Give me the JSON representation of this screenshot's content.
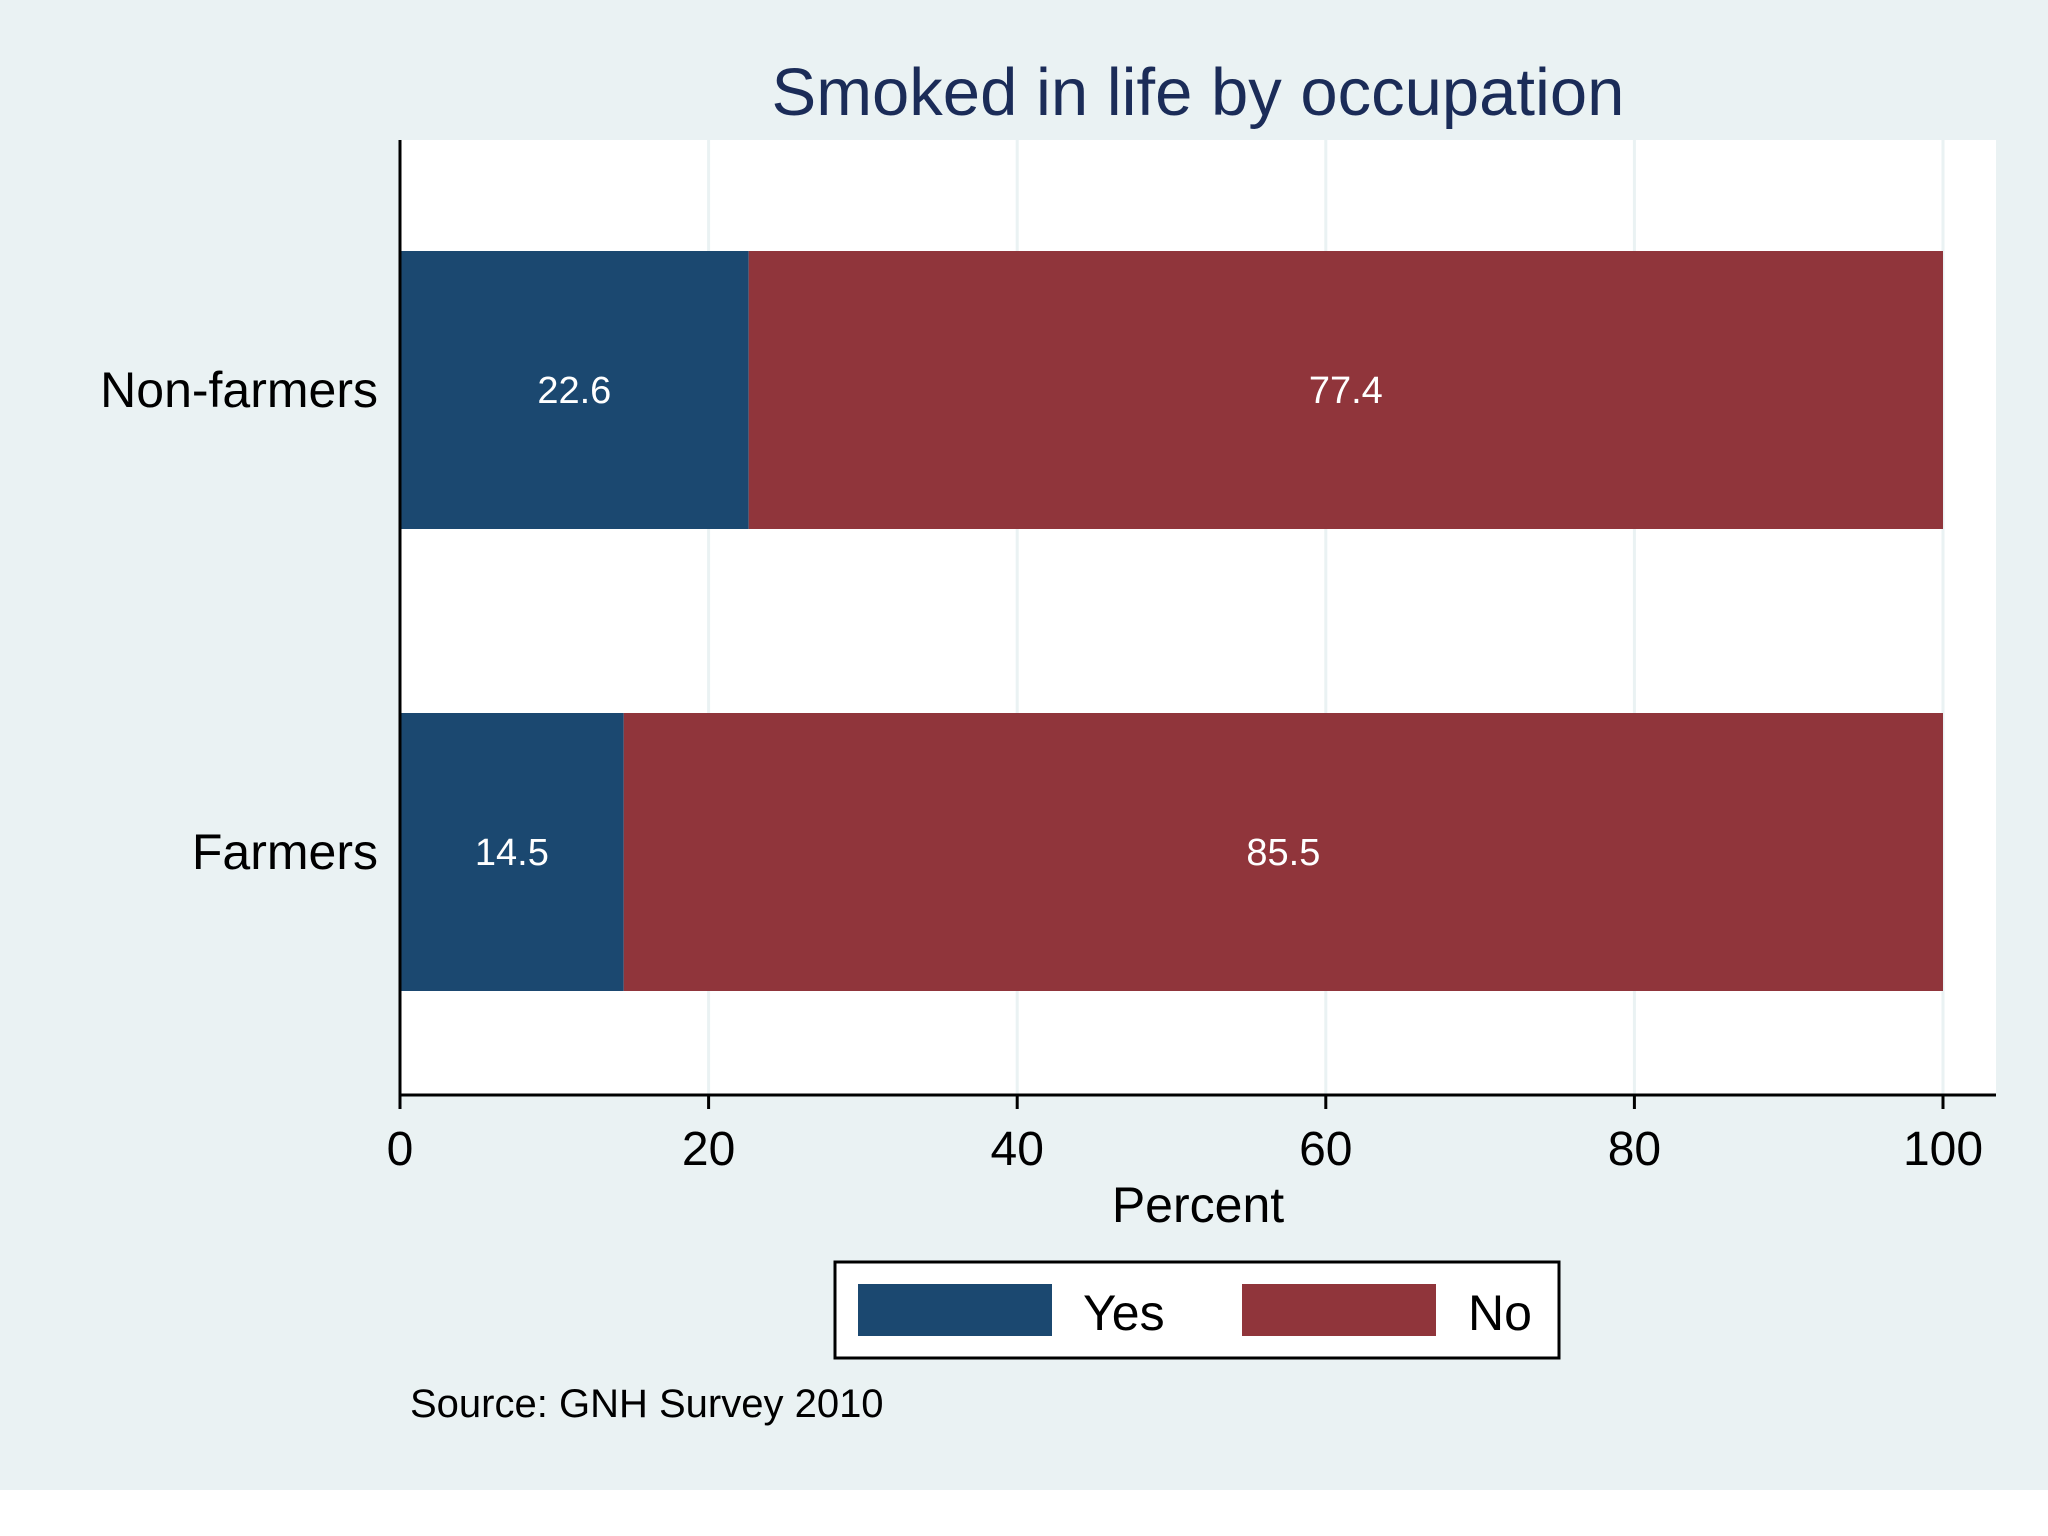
{
  "chart_data": {
    "type": "bar",
    "orientation": "horizontal",
    "stacked": true,
    "title": "Smoked in life by occupation",
    "categories": [
      "Non-farmers",
      "Farmers"
    ],
    "series": [
      {
        "name": "Yes",
        "values": [
          22.6,
          14.5
        ],
        "labels": [
          "22.6",
          "14.5"
        ],
        "color": "#1b4870"
      },
      {
        "name": "No",
        "values": [
          77.4,
          85.5
        ],
        "labels": [
          "77.4",
          "85.5"
        ],
        "color": "#90353b"
      }
    ],
    "xlabel": "Percent",
    "ylabel": "",
    "xlim": [
      0,
      100
    ],
    "xticks": [
      0,
      20,
      40,
      60,
      80,
      100
    ],
    "grid": true,
    "legend": [
      "Yes",
      "No"
    ],
    "legend_position": "bottom",
    "note": "Source: GNH Survey 2010"
  },
  "colors": {
    "outer_background": "#eaf2f3",
    "plot_background": "#ffffff",
    "gridline": "#eaf2f3",
    "axis": "#000000",
    "title": "#1b2c58"
  }
}
